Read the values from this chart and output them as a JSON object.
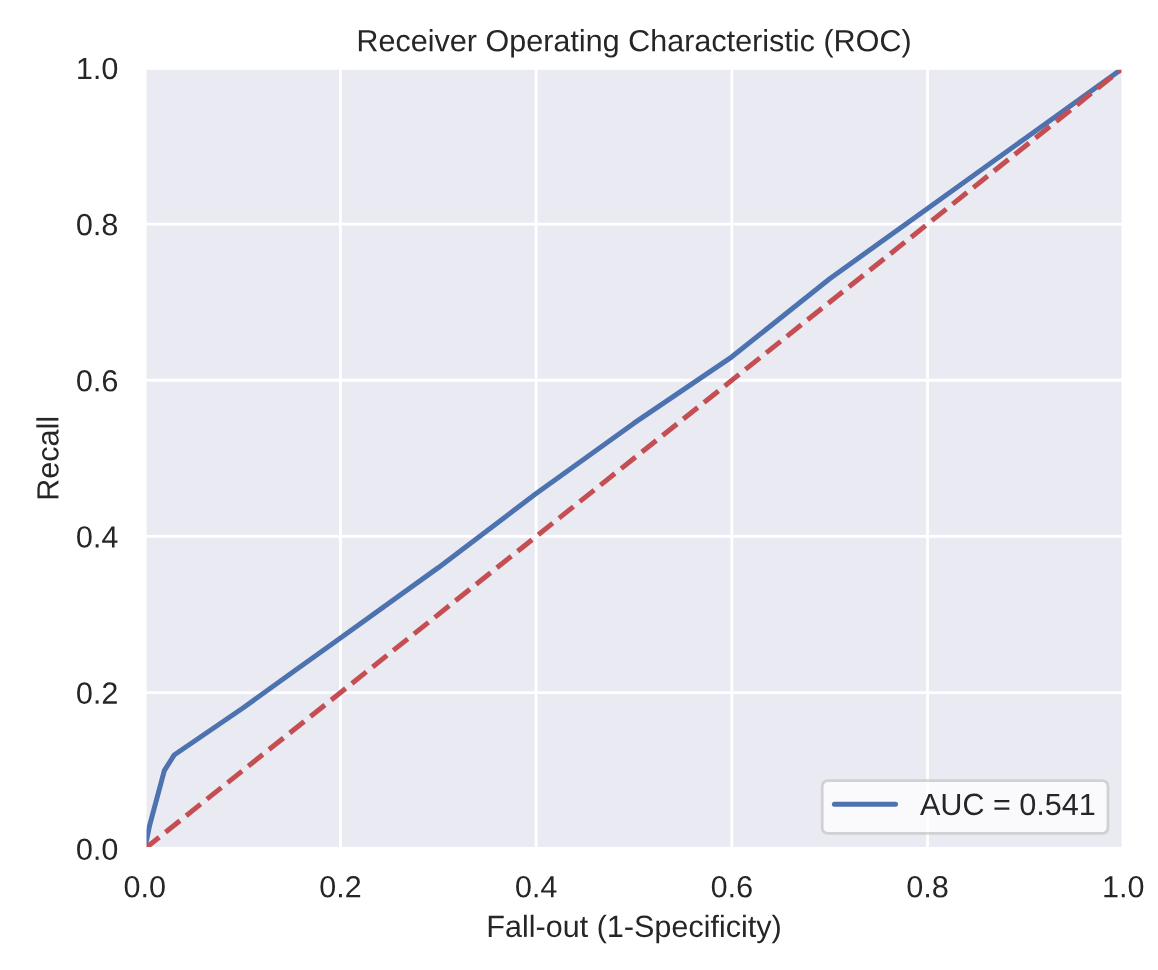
{
  "chart_data": {
    "type": "line",
    "title": "Receiver Operating Characteristic (ROC)",
    "xlabel": "Fall-out (1-Specificity)",
    "ylabel": "Recall",
    "series": [
      {
        "name": "AUC = 0.541",
        "color": "#4c72b0",
        "line_style": "solid",
        "x": [
          0,
          0.005,
          0.02,
          0.03,
          0.1,
          0.15,
          0.2,
          0.3,
          0.4,
          0.5,
          0.6,
          0.7,
          0.8,
          0.9,
          1.0
        ],
        "values": [
          0,
          0.03,
          0.1,
          0.12,
          0.18,
          0.225,
          0.27,
          0.36,
          0.455,
          0.545,
          0.63,
          0.73,
          0.82,
          0.91,
          1.0
        ]
      },
      {
        "color": "#c44e52",
        "line_style": "dashed",
        "x": [
          0,
          1
        ],
        "values": [
          0,
          1
        ]
      }
    ],
    "xlim": [
      0,
      1
    ],
    "ylim": [
      0,
      1
    ],
    "xticks": [
      {
        "value": 0,
        "label": "0.0"
      },
      0.2,
      0.4,
      0.6,
      0.8,
      {
        "value": 1,
        "label": "1.0"
      }
    ],
    "yticks": [
      {
        "value": 0,
        "label": "0.0"
      },
      0.2,
      0.4,
      0.6,
      0.8,
      {
        "value": 1,
        "label": "1.0"
      }
    ],
    "grid": true,
    "legend": "lower right"
  }
}
